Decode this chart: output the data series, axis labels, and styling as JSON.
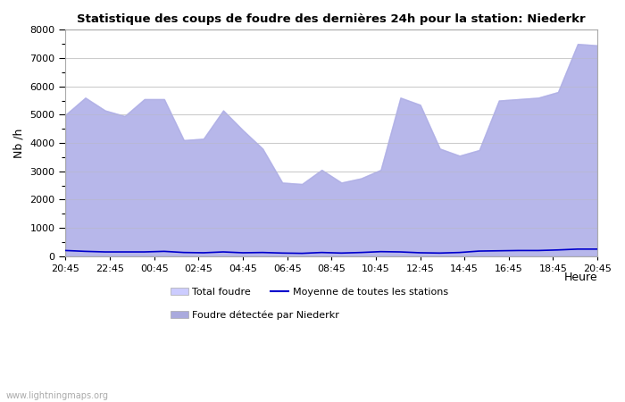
{
  "title": "Statistique des coups de foudre des dernières 24h pour la station: Niederkr",
  "ylabel": "Nb /h",
  "ylim": [
    0,
    8000
  ],
  "yticks": [
    0,
    1000,
    2000,
    3000,
    4000,
    5000,
    6000,
    7000,
    8000
  ],
  "xtick_labels": [
    "20:45",
    "22:45",
    "00:45",
    "02:45",
    "04:45",
    "06:45",
    "08:45",
    "10:45",
    "12:45",
    "14:45",
    "16:45",
    "18:45",
    "20:45"
  ],
  "watermark": "www.lightningmaps.org",
  "total_foudre_color": "#ccccff",
  "niederkr_color": "#aaaadd",
  "moyenne_color": "#0000cc",
  "total_foudre_values": [
    5000,
    5600,
    5150,
    4950,
    5550,
    5550,
    4100,
    4150,
    5150,
    4450,
    3800,
    2600,
    2550,
    3050,
    2600,
    2750,
    3050,
    5600,
    5350,
    3800,
    3550,
    3750,
    5500,
    5550,
    5600,
    5800,
    7500,
    7450
  ],
  "niederkr_values": [
    5000,
    5600,
    5150,
    4950,
    5550,
    5550,
    4100,
    4150,
    5150,
    4450,
    3800,
    2600,
    2550,
    3050,
    2600,
    2750,
    3050,
    5600,
    5350,
    3800,
    3550,
    3750,
    5500,
    5550,
    5600,
    5800,
    7500,
    7450
  ],
  "moyenne_values": [
    200,
    170,
    150,
    150,
    150,
    170,
    130,
    120,
    150,
    120,
    130,
    110,
    100,
    130,
    110,
    130,
    160,
    150,
    120,
    110,
    130,
    180,
    190,
    200,
    200,
    220,
    250,
    250
  ],
  "background_color": "#ffffff",
  "plot_bg_color": "#ffffff",
  "grid_color": "#cccccc",
  "legend_total_label": "Total foudre",
  "legend_moyenne_label": "Moyenne de toutes les stations",
  "legend_nieder_label": "Foudre détectée par Niederkr",
  "heure_label": "Heure"
}
